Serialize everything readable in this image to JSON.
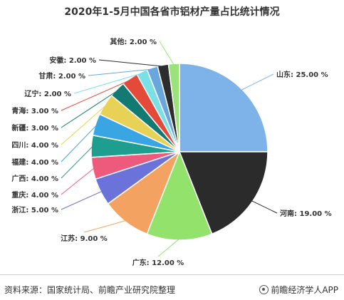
{
  "title": "2020年1-5月中国各省市铝材产量占比统计情况",
  "footer": {
    "source": "资料来源：国家统计局、前瞻产业研究院整理",
    "brand": "前瞻经济学人APP"
  },
  "chart_data": {
    "type": "pie",
    "title": "2020年1-5月中国各省市铝材产量占比统计情况",
    "value_suffix": " %",
    "slices": [
      {
        "label": "山东",
        "value": 25.0,
        "display": "25.00",
        "color": "#7EB3E9"
      },
      {
        "label": "河南",
        "value": 19.0,
        "display": "19.00",
        "color": "#2B2B2B"
      },
      {
        "label": "广东",
        "value": 12.0,
        "display": "12.00",
        "color": "#92E26C"
      },
      {
        "label": "江苏",
        "value": 9.0,
        "display": "9.00",
        "color": "#F4A261"
      },
      {
        "label": "浙江",
        "value": 5.0,
        "display": "5.00",
        "color": "#6B72D9"
      },
      {
        "label": "重庆",
        "value": 4.0,
        "display": "4.00",
        "color": "#EE5A7C"
      },
      {
        "label": "广西",
        "value": 4.0,
        "display": "4.00",
        "color": "#1D9E8E"
      },
      {
        "label": "福建",
        "value": 4.0,
        "display": "4.00",
        "color": "#3AA5E3"
      },
      {
        "label": "四川",
        "value": 4.0,
        "display": "4.00",
        "color": "#E8D255"
      },
      {
        "label": "新疆",
        "value": 3.0,
        "display": "3.00",
        "color": "#127A70"
      },
      {
        "label": "青海",
        "value": 3.0,
        "display": "3.00",
        "color": "#E34A3A"
      },
      {
        "label": "辽宁",
        "value": 2.0,
        "display": "2.00",
        "color": "#79E0E6"
      },
      {
        "label": "甘肃",
        "value": 2.0,
        "display": "2.00",
        "color": "#6AA6DE"
      },
      {
        "label": "安徽",
        "value": 2.0,
        "display": "2.00",
        "color": "#2D2D2D"
      },
      {
        "label": "其他",
        "value": 2.0,
        "display": "2.00",
        "color": "#9AE37A"
      }
    ],
    "legend": "none"
  }
}
